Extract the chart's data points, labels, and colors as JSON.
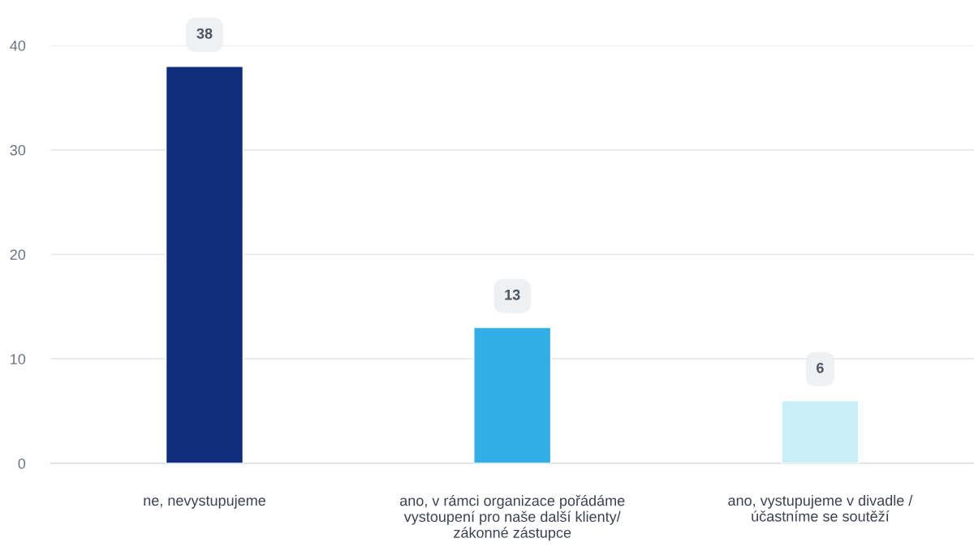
{
  "chart_data": {
    "type": "bar",
    "categories": [
      "ne, nevystupujeme",
      "ano, v rámci organizace pořádáme vystoupení pro naše další klienty/ zákonné zástupce",
      "ano, vystupujeme v divadle / účastníme se soutěží"
    ],
    "values": [
      38,
      13,
      6
    ],
    "colors": [
      "#0f2d7a",
      "#33aee5",
      "#c9f0f9"
    ],
    "ylim": [
      0,
      40
    ],
    "yticks": [
      0,
      10,
      20,
      30,
      40
    ],
    "grid": "y",
    "data_labels": true
  }
}
